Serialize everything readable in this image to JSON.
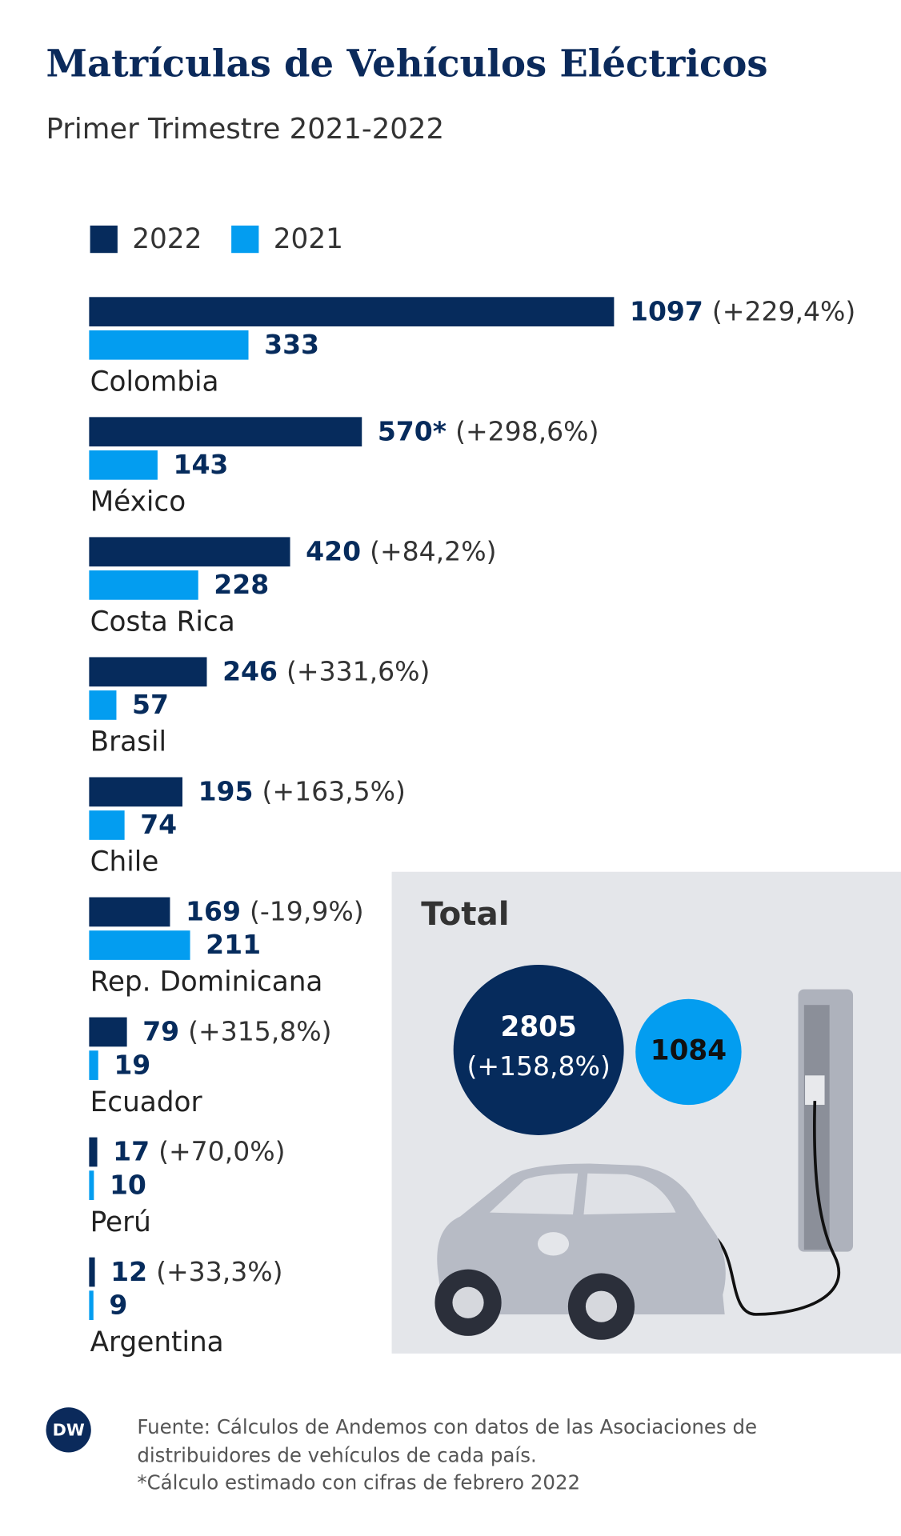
{
  "chart_data": {
    "type": "bar",
    "title": "Matrículas de Vehículos Eléctricos",
    "subtitle": "Primer Trimestre 2021-2022",
    "categories": [
      "Colombia",
      "México",
      "Costa Rica",
      "Brasil",
      "Chile",
      "Rep. Dominicana",
      "Ecuador",
      "Perú",
      "Argentina"
    ],
    "series": [
      {
        "name": "2022",
        "color": "#062b5c",
        "values": [
          1097,
          570,
          420,
          246,
          195,
          169,
          79,
          17,
          12
        ],
        "value_labels": [
          "1097",
          "570*",
          "420",
          "246",
          "195",
          "169",
          "79",
          "17",
          "12"
        ]
      },
      {
        "name": "2021",
        "color": "#039df0",
        "values": [
          333,
          143,
          228,
          57,
          74,
          211,
          19,
          10,
          9
        ]
      }
    ],
    "changes": [
      "(+229,4%)",
      "(+298,6%)",
      "(+84,2%)",
      "(+331,6%)",
      "(+163,5%)",
      "(-19,9%)",
      "(+315,8%)",
      "(+70,0%)",
      "(+33,3%)"
    ],
    "total": {
      "title": "Total",
      "values": [
        2805,
        1084
      ],
      "change": "(+158,8%)"
    }
  },
  "footer": {
    "logo": "DW",
    "source": [
      "Fuente: Cálculos de Andemos con datos de las Asociaciones de",
      "distribuidores de vehículos de cada país.",
      "*Cálculo estimado con cifras de febrero 2022"
    ]
  }
}
